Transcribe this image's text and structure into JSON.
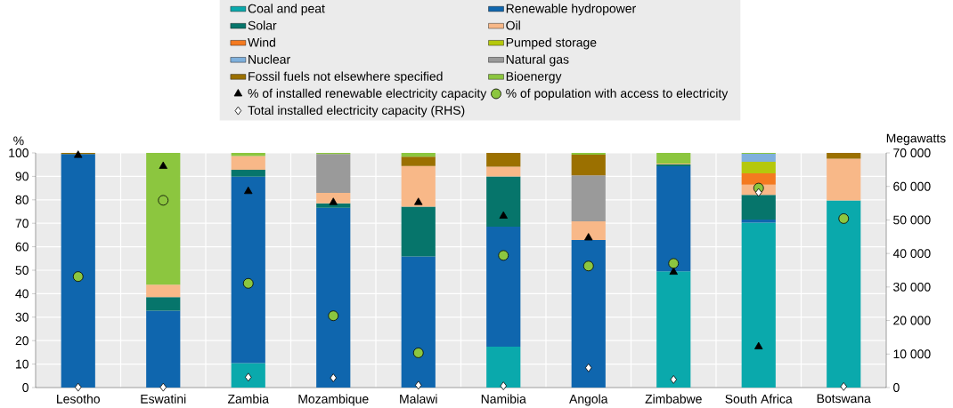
{
  "chart_data": {
    "type": "bar",
    "stacked": true,
    "categories": [
      "Lesotho",
      "Eswatini",
      "Zambia",
      "Mozambique",
      "Malawi",
      "Namibia",
      "Angola",
      "Zimbabwe",
      "South Africa",
      "Botswana"
    ],
    "ylabel": "%",
    "y2label": "Megawatts",
    "ylim": [
      0,
      100
    ],
    "yticks": [
      0,
      10,
      20,
      30,
      40,
      50,
      60,
      70,
      80,
      90,
      100
    ],
    "y2lim": [
      0,
      70000
    ],
    "y2ticks": [
      {
        "value": 0,
        "label": "0"
      },
      {
        "value": 10000,
        "label": "10 000"
      },
      {
        "value": 20000,
        "label": "20 000"
      },
      {
        "value": 30000,
        "label": "30 000"
      },
      {
        "value": 40000,
        "label": "40 000"
      },
      {
        "value": 50000,
        "label": "50 000"
      },
      {
        "value": 60000,
        "label": "60 000"
      },
      {
        "value": 70000,
        "label": "70 000"
      }
    ],
    "grid": true,
    "legend": "top",
    "series": [
      {
        "name": "Coal and peat",
        "color": "#0aa9ac",
        "values": [
          null,
          null,
          10.4,
          null,
          null,
          17.4,
          null,
          49.5,
          70.3,
          79.7
        ]
      },
      {
        "name": "Renewable hydropower",
        "color": "#0f66ae",
        "values": [
          99.5,
          32.8,
          79.5,
          76.6,
          55.9,
          51.2,
          62.9,
          44.8,
          1.3,
          null
        ]
      },
      {
        "name": "Solar",
        "color": "#06756b",
        "values": [
          null,
          5.7,
          2.9,
          1.9,
          21.2,
          21.4,
          null,
          0.8,
          10.5,
          null
        ]
      },
      {
        "name": "Oil",
        "color": "#f8b888",
        "values": [
          null,
          5.3,
          5.9,
          4.5,
          17.3,
          4.1,
          7.9,
          0.4,
          4.4,
          17.8
        ]
      },
      {
        "name": "Wind",
        "color": "#f47a20",
        "values": [
          null,
          null,
          null,
          null,
          null,
          null,
          null,
          null,
          4.8,
          null
        ]
      },
      {
        "name": "Pumped storage",
        "color": "#b5c80c",
        "values": [
          null,
          null,
          null,
          null,
          null,
          null,
          null,
          null,
          4.9,
          null
        ]
      },
      {
        "name": "Nuclear",
        "color": "#7fb0dc",
        "values": [
          null,
          null,
          null,
          null,
          null,
          null,
          null,
          null,
          3.4,
          null
        ]
      },
      {
        "name": "Natural gas",
        "color": "#9a9a9a",
        "values": [
          null,
          null,
          null,
          16.5,
          null,
          null,
          19.6,
          null,
          null,
          null
        ]
      },
      {
        "name": "Fossil fuels not elsewhere specified",
        "color": "#9b7000",
        "values": [
          0.5,
          null,
          null,
          null,
          4.0,
          5.9,
          8.8,
          null,
          null,
          2.5
        ]
      },
      {
        "name": "Bioenergy",
        "color": "#8cc63f",
        "values": [
          null,
          56.2,
          1.3,
          0.5,
          1.6,
          null,
          0.8,
          4.5,
          0.4,
          null
        ]
      },
      {
        "name": "% of installed renewable electricity capacity",
        "type": "scatter",
        "marker": "triangle",
        "color": "#000000",
        "values": [
          99,
          94.3,
          83.6,
          78.9,
          78.9,
          73.1,
          63.8,
          49.2,
          17.4,
          null
        ]
      },
      {
        "name": "% of population with access to electricity",
        "type": "scatter",
        "marker": "circle",
        "color": "#8cc63f",
        "values": [
          47.3,
          79.8,
          44.4,
          30.6,
          14.8,
          56.3,
          51.8,
          52.9,
          85.0,
          72.0
        ]
      },
      {
        "name": "Total installed electricity capacity (RHS)",
        "type": "scatter",
        "marker": "diamond",
        "axis": "y2",
        "color": "#ffffff",
        "values": [
          100,
          100,
          3100,
          2900,
          700,
          500,
          5900,
          2400,
          58200,
          300
        ]
      }
    ]
  }
}
